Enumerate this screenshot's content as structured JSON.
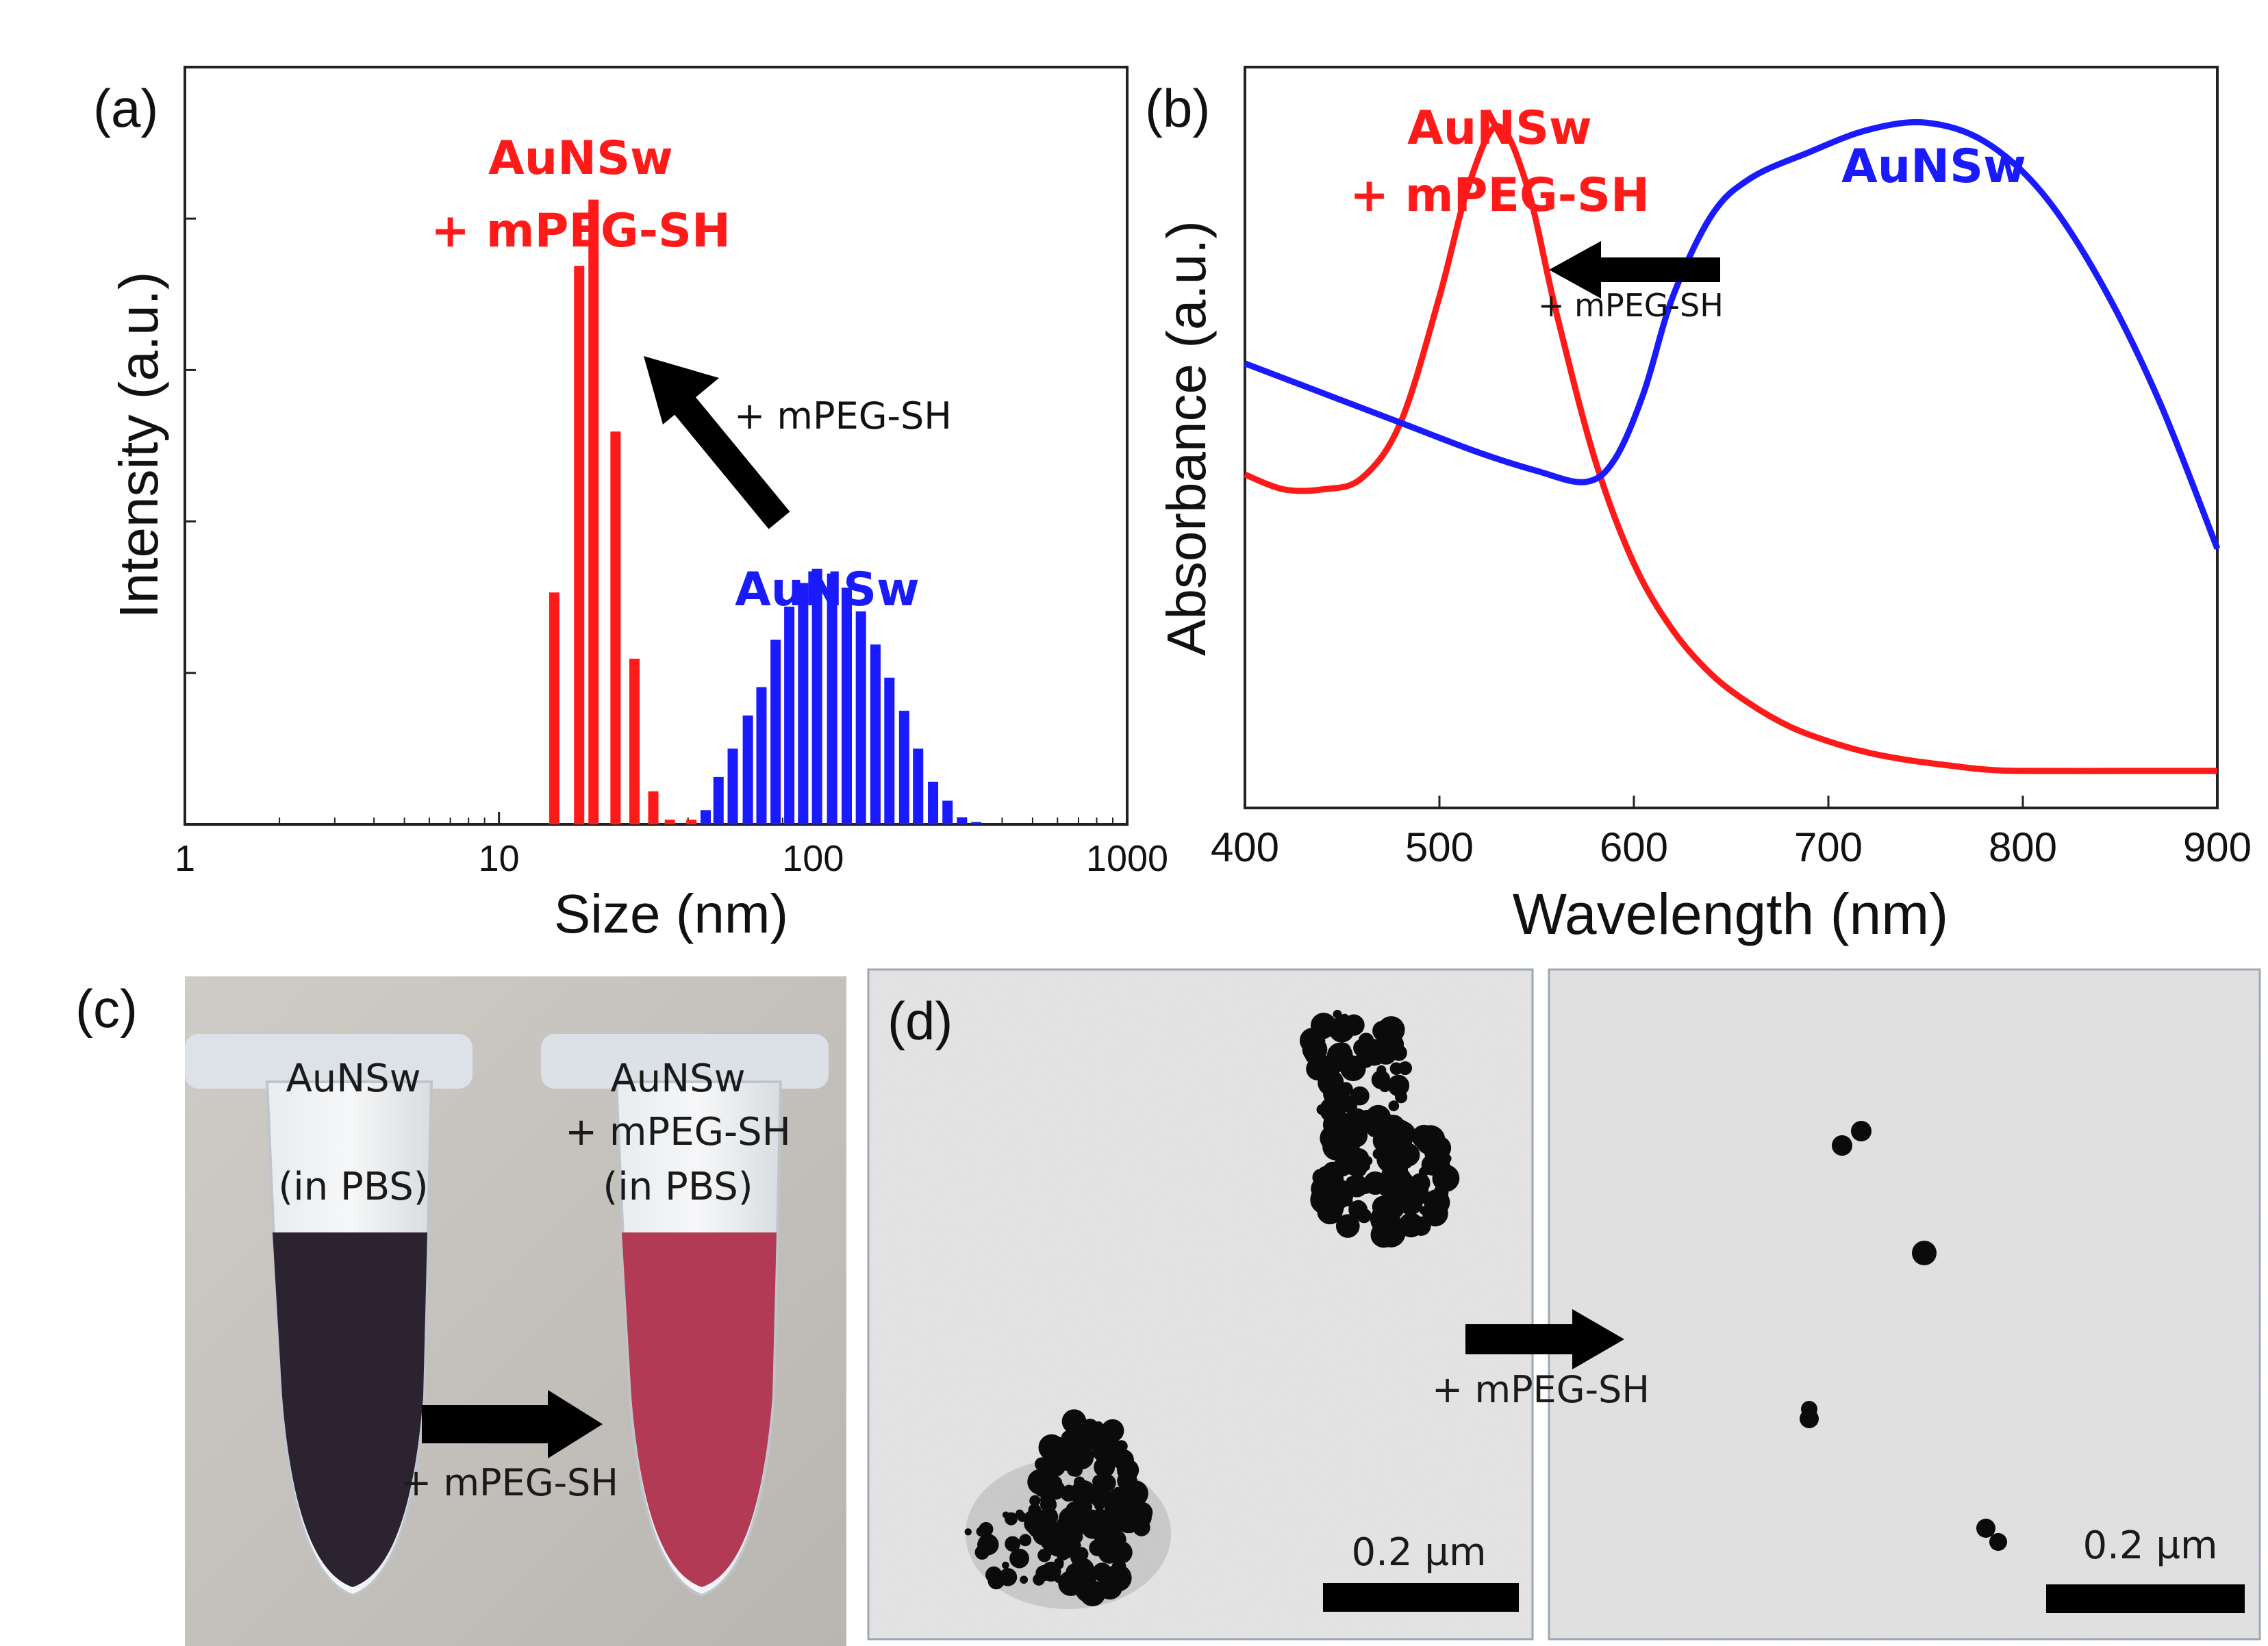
{
  "panel_labels": {
    "a": "(a)",
    "b": "(b)",
    "c": "(c)",
    "d": "(d)"
  },
  "chart_data": [
    {
      "type": "bar",
      "panel": "(a)",
      "xlabel": "Size (nm)",
      "ylabel": "Intensity (a.u.)",
      "x_scale": "log",
      "xlim": [
        1,
        1000
      ],
      "ylim": [
        0,
        16
      ],
      "x_ticks": [
        "1",
        "10",
        "100",
        "1000"
      ],
      "series": [
        {
          "name": "AuNSw + mPEG-SH",
          "color": "#ff1a1a",
          "x": [
            15.0,
            18.0,
            20.0,
            23.5,
            27.0,
            31.0,
            35.0,
            41.0
          ],
          "values": [
            4.9,
            11.8,
            13.2,
            8.3,
            3.5,
            0.7,
            0.1,
            0.1
          ]
        },
        {
          "name": "AuNSw",
          "color": "#1a1aff",
          "x": [
            45.5,
            50.0,
            55.5,
            62.0,
            68.5,
            76.0,
            84.0,
            93.0,
            103.0,
            115.0,
            128.0,
            142.0,
            158.0,
            175.0,
            195.0,
            216.0,
            241.0,
            268.0,
            298.0,
            331.0,
            368.0
          ],
          "values": [
            0.3,
            1.0,
            1.6,
            2.3,
            2.9,
            3.9,
            4.6,
            5.1,
            5.4,
            5.3,
            5.0,
            4.5,
            3.8,
            3.1,
            2.4,
            1.6,
            0.9,
            0.5,
            0.15,
            0.05,
            0.0
          ]
        }
      ],
      "annotations": {
        "red_label_1": "AuNSw",
        "red_label_2": "+ mPEG-SH",
        "blue_label": "AuNSw",
        "arrow_label": "+ mPEG-SH"
      }
    },
    {
      "type": "line",
      "panel": "(b)",
      "xlabel": "Wavelength (nm)",
      "ylabel": "Absorbance (a.u.)",
      "xlim": [
        400,
        900
      ],
      "ylim": [
        0,
        1.0
      ],
      "x_ticks": [
        "400",
        "500",
        "600",
        "700",
        "800",
        "900"
      ],
      "series": [
        {
          "name": "AuNSw + mPEG-SH",
          "color": "#ff1a1a",
          "x": [
            400,
            420,
            440,
            460,
            480,
            500,
            515,
            530,
            545,
            560,
            580,
            600,
            620,
            640,
            660,
            680,
            700,
            720,
            740,
            760,
            780,
            800,
            850,
            900
          ],
          "y": [
            0.45,
            0.43,
            0.43,
            0.445,
            0.52,
            0.69,
            0.84,
            0.92,
            0.84,
            0.67,
            0.47,
            0.33,
            0.24,
            0.18,
            0.14,
            0.11,
            0.09,
            0.075,
            0.065,
            0.058,
            0.052,
            0.05,
            0.05,
            0.05
          ]
        },
        {
          "name": "AuNSw",
          "color": "#1a1aff",
          "x": [
            400,
            440,
            480,
            520,
            550,
            575,
            590,
            605,
            620,
            640,
            660,
            690,
            720,
            750,
            780,
            810,
            840,
            870,
            900
          ],
          "y": [
            0.6,
            0.56,
            0.52,
            0.48,
            0.455,
            0.44,
            0.47,
            0.56,
            0.69,
            0.8,
            0.85,
            0.885,
            0.915,
            0.925,
            0.9,
            0.83,
            0.71,
            0.55,
            0.35
          ]
        }
      ],
      "annotations": {
        "red_label_1": "AuNSw",
        "red_label_2": "+ mPEG-SH",
        "blue_label": "AuNSw",
        "arrow_label": "+ mPEG-SH"
      }
    }
  ],
  "photo_c": {
    "left_tube_1": "AuNSw",
    "left_tube_2": "(in PBS)",
    "right_tube_1": "AuNSw",
    "right_tube_2": "+ mPEG-SH",
    "right_tube_3": "(in PBS)",
    "arrow_label": "+ mPEG-SH",
    "colors": {
      "left_liquid": "#2b2430",
      "right_liquid": "#b33a55",
      "background": "#c9c6c2"
    }
  },
  "tem_d": {
    "arrow_label": "+ mPEG-SH",
    "scale_left": "0.2 µm",
    "scale_right": "0.2 µm"
  }
}
